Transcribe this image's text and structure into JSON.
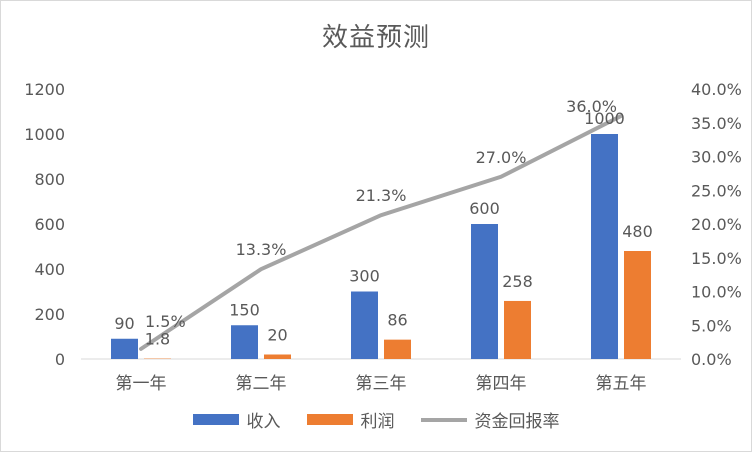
{
  "chart_data": {
    "type": "bar",
    "title": "效益预测",
    "categories": [
      "第一年",
      "第二年",
      "第三年",
      "第四年",
      "第五年"
    ],
    "series": [
      {
        "name": "收入",
        "type": "bar",
        "axis": "left",
        "color": "#4472C4",
        "values": [
          90,
          150,
          300,
          600,
          1000
        ],
        "labels": [
          "90",
          "150",
          "300",
          "600",
          "1000"
        ]
      },
      {
        "name": "利润",
        "type": "bar",
        "axis": "left",
        "color": "#ED7D31",
        "values": [
          1.8,
          20,
          86,
          258,
          480
        ],
        "labels": [
          "1.8",
          "20",
          "86",
          "258",
          "480"
        ]
      },
      {
        "name": "资金回报率",
        "type": "line",
        "axis": "right",
        "color": "#A5A5A5",
        "values": [
          1.5,
          13.3,
          21.3,
          27.0,
          36.0
        ],
        "labels": [
          "1.5%",
          "13.3%",
          "21.3%",
          "27.0%",
          "36.0%"
        ]
      }
    ],
    "y_left": {
      "min": 0,
      "max": 1200,
      "ticks": [
        "0",
        "200",
        "400",
        "600",
        "800",
        "1000",
        "1200"
      ]
    },
    "y_right": {
      "min": 0,
      "max": 40,
      "ticks": [
        "0.0%",
        "5.0%",
        "10.0%",
        "15.0%",
        "20.0%",
        "25.0%",
        "30.0%",
        "35.0%",
        "40.0%"
      ]
    },
    "grid": false,
    "legend": "bottom"
  }
}
